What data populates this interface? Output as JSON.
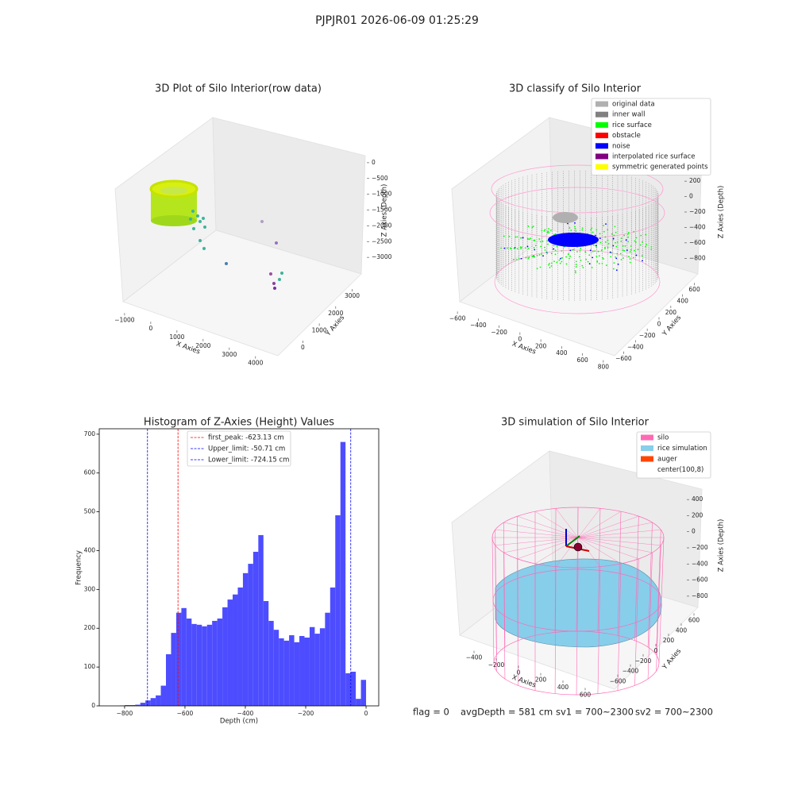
{
  "title": "PJPJR01 2026-06-09 01:25:29",
  "footer": [
    "flag = 0",
    "avgDepth = 581 cm",
    "sv1 = 700~2300",
    "sv2 = 700~2300"
  ],
  "chart_data": [
    {
      "type": "scatter3d",
      "title": "3D Plot of Silo Interior(row data)",
      "xlabel": "X Axies",
      "ylabel": "Y Axies",
      "zlabel": "Z Axies (Depth)",
      "xlim": [
        -1300,
        4400
      ],
      "ylim": [
        -600,
        3700
      ],
      "zlim": [
        -3500,
        300
      ],
      "xticks": [
        {
          "value": -1000,
          "label": "−1000"
        },
        0,
        1000,
        2000,
        3000,
        4000
      ],
      "yticks": [
        0,
        1000,
        2000,
        3000
      ],
      "zticks": [
        0,
        {
          "value": -500,
          "label": "−500"
        },
        {
          "value": -1000,
          "label": "−1000"
        },
        {
          "value": -1500,
          "label": "−1500"
        },
        {
          "value": -2000,
          "label": "−2000"
        },
        {
          "value": -2500,
          "label": "−2500"
        },
        {
          "value": -3000,
          "label": "−3000"
        }
      ]
    },
    {
      "type": "scatter3d",
      "title": "3D classify of Silo Interior",
      "xlabel": "X Axies",
      "ylabel": "Y Axies",
      "zlabel": "Z Axies (Depth)",
      "xlim": [
        -700,
        900
      ],
      "ylim": [
        -700,
        700
      ],
      "zlim": [
        -900,
        500
      ],
      "xticks": [
        {
          "value": -600,
          "label": "−600"
        },
        {
          "value": -400,
          "label": "−400"
        },
        {
          "value": -200,
          "label": "−200"
        },
        0,
        200,
        400,
        600,
        800
      ],
      "yticks": [
        {
          "value": -600,
          "label": "−600"
        },
        {
          "value": -400,
          "label": "−400"
        },
        {
          "value": -200,
          "label": "−200"
        },
        0,
        200,
        400,
        600
      ],
      "zticks": [
        400,
        200,
        0,
        {
          "value": -200,
          "label": "−200"
        },
        {
          "value": -400,
          "label": "−400"
        },
        {
          "value": -600,
          "label": "−600"
        },
        {
          "value": -800,
          "label": "−800"
        }
      ],
      "series": [
        {
          "name": "original data",
          "color": "#b0b0b0"
        },
        {
          "name": "inner wall",
          "color": "#808080"
        },
        {
          "name": "rice surface",
          "color": "#00ff00"
        },
        {
          "name": "obstacle",
          "color": "#ff0000"
        },
        {
          "name": "noise",
          "color": "#0000ff"
        },
        {
          "name": "interpolated rice surface",
          "color": "#800080"
        },
        {
          "name": "symmetric generated points",
          "color": "#ffff00"
        }
      ]
    },
    {
      "type": "histogram",
      "title": "Histogram of Z-Axies (Height) Values",
      "xlabel": "Depth (cm)",
      "ylabel": "Frequency",
      "color": "#4d4dff",
      "xlim": [
        -884,
        42
      ],
      "ylim": [
        0,
        714
      ],
      "xticks": [
        {
          "value": -800,
          "label": "−800"
        },
        {
          "value": -600,
          "label": "−600"
        },
        {
          "value": -400,
          "label": "−400"
        },
        {
          "value": -200,
          "label": "−200"
        },
        0
      ],
      "yticks": [
        0,
        100,
        200,
        300,
        400,
        500,
        600,
        700
      ],
      "bins": [
        -816,
        -799,
        -782,
        -765,
        -748,
        -731,
        -714,
        -697,
        -680,
        -663,
        -646,
        -629,
        -612,
        -595,
        -578,
        -561,
        -544,
        -527,
        -510,
        -493,
        -476,
        -459,
        -442,
        -425,
        -408,
        -391,
        -374,
        -357,
        -340,
        -323,
        -306,
        -289,
        -272,
        -255,
        -238,
        -221,
        -204,
        -187,
        -170,
        -153,
        -136,
        -119,
        -102,
        -85,
        -68,
        -51,
        -34,
        -17,
        0
      ],
      "values": [
        1,
        2,
        2,
        3,
        8,
        14,
        20,
        27,
        52,
        133,
        188,
        240,
        252,
        225,
        211,
        209,
        205,
        209,
        219,
        225,
        254,
        274,
        287,
        305,
        342,
        366,
        397,
        440,
        270,
        219,
        196,
        174,
        168,
        182,
        164,
        180,
        176,
        203,
        186,
        200,
        240,
        305,
        491,
        680,
        84,
        88,
        18,
        67
      ],
      "vlines": [
        {
          "name": "first_peak: -623.13 cm",
          "value": -623.13,
          "color": "#ff0000"
        },
        {
          "name": "Upper_limit: -50.71 cm",
          "value": -50.71,
          "color": "#0000ff"
        },
        {
          "name": "Lower_limit: -724.15 cm",
          "value": -724.15,
          "color": "#0000ff"
        }
      ]
    },
    {
      "type": "scatter3d",
      "title": "3D simulation of Silo Interior",
      "xlabel": "X Axies",
      "ylabel": "Y Axies",
      "zlabel": "Z Axies (Depth)",
      "xlim": [
        -500,
        700
      ],
      "ylim": [
        -700,
        700
      ],
      "zlim": [
        -900,
        500
      ],
      "xticks": [
        {
          "value": -400,
          "label": "−400"
        },
        {
          "value": -200,
          "label": "−200"
        },
        0,
        200,
        400,
        600
      ],
      "yticks": [
        {
          "value": -600,
          "label": "−600"
        },
        {
          "value": -400,
          "label": "−400"
        },
        {
          "value": -200,
          "label": "−200"
        },
        0,
        200,
        400,
        600
      ],
      "zticks": [
        400,
        200,
        0,
        {
          "value": -200,
          "label": "−200"
        },
        {
          "value": -400,
          "label": "−400"
        },
        {
          "value": -600,
          "label": "−600"
        },
        {
          "value": -800,
          "label": "−800"
        }
      ],
      "series": [
        {
          "name": "silo",
          "color": "#ff69b4"
        },
        {
          "name": "rice simulation",
          "color": "#87ceeb"
        },
        {
          "name": "auger",
          "color": "#ff4500"
        },
        {
          "name": "center(100,8)",
          "color": "#ffffff"
        }
      ]
    }
  ]
}
